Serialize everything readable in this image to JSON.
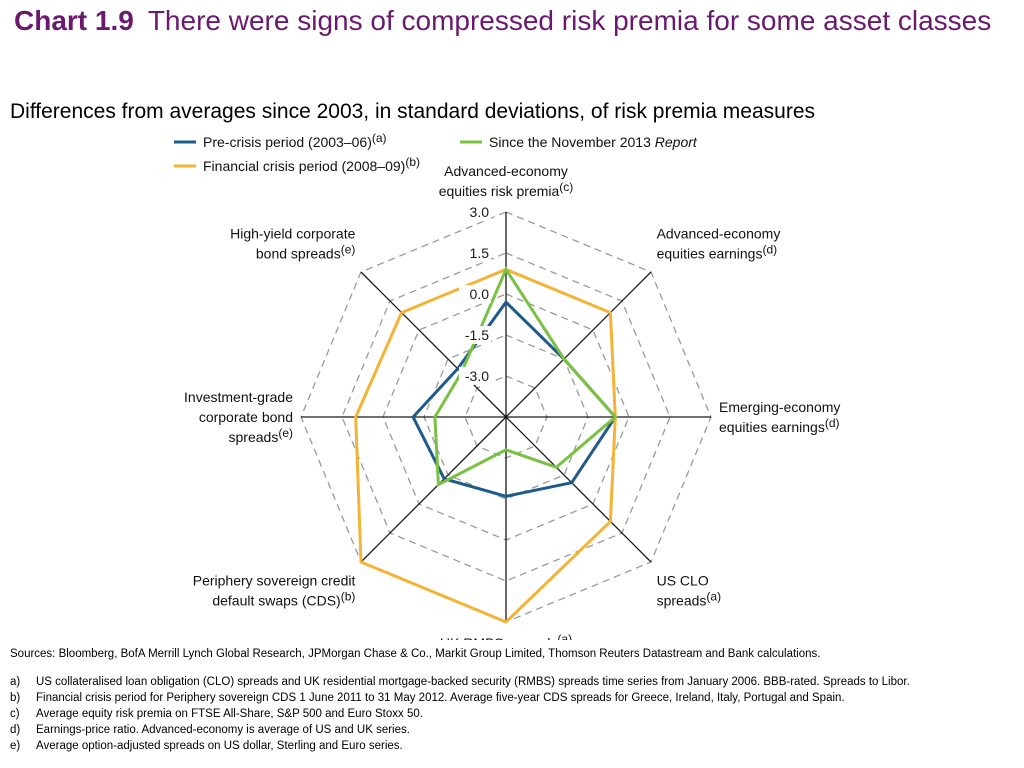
{
  "header": {
    "chart_number": "Chart 1.9",
    "title": "There were signs of compressed risk premia for some asset classes"
  },
  "subtitle": "Differences from averages since 2003, in standard deviations, of risk premia measures",
  "legend": {
    "pre_crisis": {
      "label": "Pre-crisis period (2003–06)",
      "sup": "(a)"
    },
    "financial_crisis": {
      "label": "Financial crisis period (2008–09)",
      "sup": "(b)"
    },
    "since_report": {
      "label": "Since the November 2013 ",
      "italic": "Report"
    }
  },
  "chart_data": {
    "type": "radar",
    "axis_ticks": [
      "3.0",
      "1.5",
      "0.0",
      "-1.5",
      "-3.0"
    ],
    "tick_values": [
      3.0,
      1.5,
      0.0,
      -1.5,
      -3.0
    ],
    "range": [
      -4.5,
      3.0
    ],
    "axes": [
      {
        "lines": [
          "Advanced-economy",
          "equities risk premia"
        ],
        "sup": "(c)"
      },
      {
        "lines": [
          "Advanced-economy",
          "equities earnings"
        ],
        "sup": "(d)"
      },
      {
        "lines": [
          "Emerging-economy",
          "equities earnings"
        ],
        "sup": "(d)"
      },
      {
        "lines": [
          "US CLO",
          "spreads"
        ],
        "sup": "(a)"
      },
      {
        "lines": [
          "UK RMBS spreads"
        ],
        "sup": "(a)"
      },
      {
        "lines": [
          "Periphery sovereign credit",
          "default swaps (CDS)"
        ],
        "sup": "(b)"
      },
      {
        "lines": [
          "Investment-grade",
          "corporate bond",
          "spreads"
        ],
        "sup": "(e)"
      },
      {
        "lines": [
          "High-yield corporate",
          "bond spreads"
        ],
        "sup": "(e)"
      }
    ],
    "series": [
      {
        "name": "Pre-crisis period (2003–06)",
        "color": "#1f5a8c",
        "values": [
          -0.3,
          -1.5,
          -0.5,
          -1.1,
          -1.6,
          -1.3,
          -1.1,
          -2.0
        ]
      },
      {
        "name": "Financial crisis period (2008–09)",
        "color": "#f5b335",
        "values": [
          0.9,
          0.9,
          -0.5,
          0.9,
          3.0,
          3.0,
          1.0,
          0.9
        ]
      },
      {
        "name": "Since the November 2013 Report",
        "color": "#7ac143",
        "values": [
          0.9,
          -1.5,
          -0.5,
          -1.9,
          -3.3,
          -1.0,
          -1.9,
          -2.2
        ]
      }
    ],
    "grid": true
  },
  "notes": {
    "sources": "Sources:  Bloomberg, BofA Merrill Lynch Global Research, JPMorgan Chase & Co., Markit Group Limited, Thomson Reuters Datastream and Bank calculations.",
    "footnotes": [
      {
        "mark": "a)",
        "text": "US collateralised loan obligation (CLO) spreads and UK residential mortgage-backed security (RMBS) spreads time series from January 2006.  BBB-rated.  Spreads to Libor."
      },
      {
        "mark": "b)",
        "text": "Financial crisis period for Periphery sovereign CDS 1 June 2011 to 31 May 2012.  Average five-year CDS spreads for Greece, Ireland, Italy, Portugal and Spain."
      },
      {
        "mark": "c)",
        "text": "Average equity risk premia on FTSE All-Share, S&P 500 and Euro Stoxx 50."
      },
      {
        "mark": "d)",
        "text": "Earnings-price ratio.  Advanced-economy is average of US and UK series."
      },
      {
        "mark": "e)",
        "text": "Average option-adjusted spreads on US dollar, Sterling and Euro series."
      }
    ]
  }
}
